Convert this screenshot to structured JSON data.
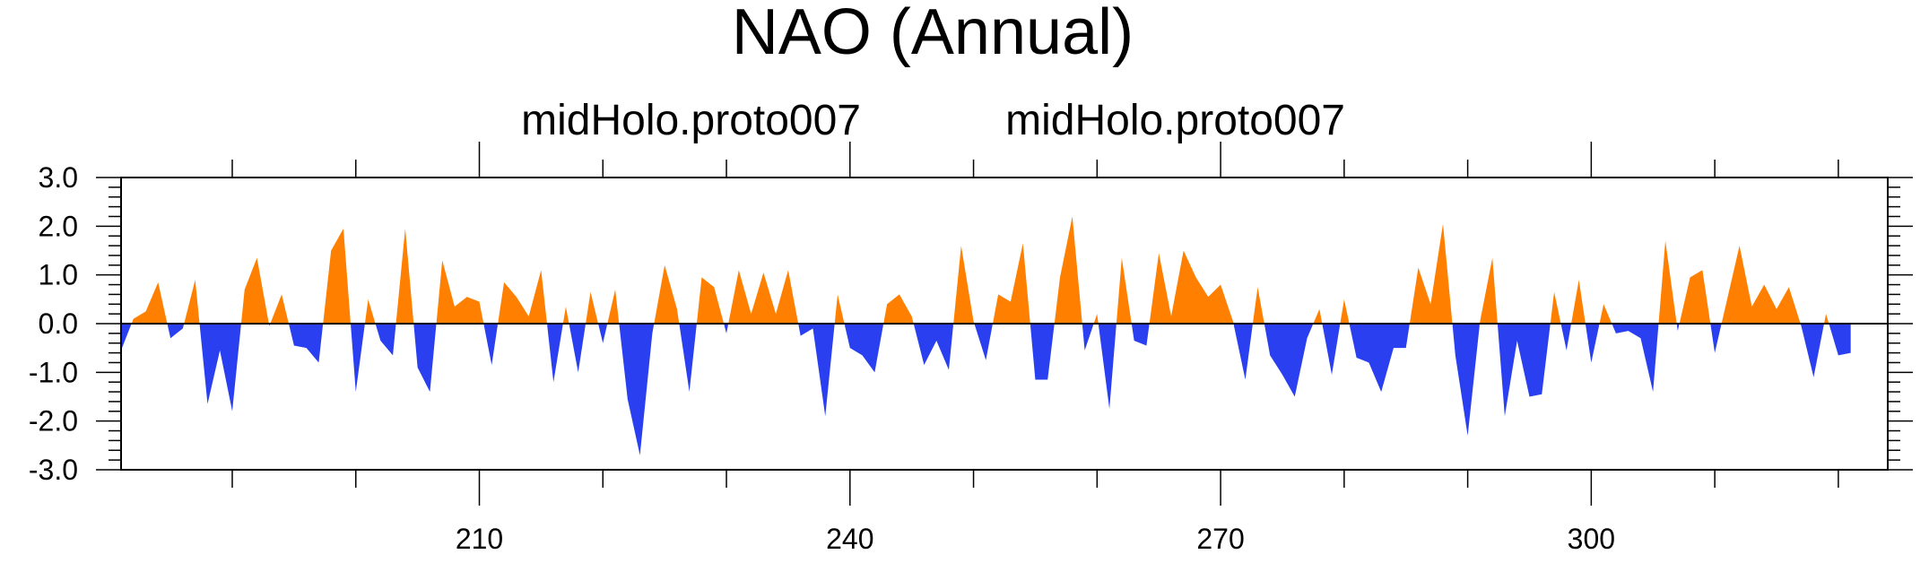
{
  "chart_data": {
    "type": "area",
    "title": "NAO (Annual)",
    "subtitle_left": "midHolo.proto007",
    "subtitle_right": "midHolo.proto007",
    "xlabel": "",
    "ylabel": "",
    "xlim": [
      181,
      324
    ],
    "ylim": [
      -3,
      3
    ],
    "x_ticks": [
      210,
      240,
      270,
      300
    ],
    "y_ticks": [
      3,
      2,
      1,
      0,
      -1,
      -2,
      -3
    ],
    "y_tick_labels": [
      "3.0",
      "2.0",
      "1.0",
      "0.0",
      "-1.0",
      "-2.0",
      "-3.0"
    ],
    "positive_color": "#ff8000",
    "negative_color": "#2a40f0",
    "x_start": 181,
    "values": [
      -0.55,
      0.1,
      0.25,
      0.85,
      -0.3,
      -0.1,
      0.9,
      -1.65,
      -0.55,
      -1.8,
      0.7,
      1.35,
      -0.05,
      0.6,
      -0.45,
      -0.5,
      -0.8,
      1.5,
      1.95,
      -1.4,
      0.5,
      -0.35,
      -0.65,
      1.95,
      -0.9,
      -1.4,
      1.3,
      0.35,
      0.55,
      0.45,
      -0.85,
      0.85,
      0.55,
      0.15,
      1.1,
      -1.2,
      0.35,
      -1.0,
      0.65,
      -0.4,
      0.7,
      -1.55,
      -2.7,
      -0.2,
      1.2,
      0.3,
      -1.4,
      0.95,
      0.75,
      -0.2,
      1.1,
      0.2,
      1.05,
      0.2,
      1.1,
      -0.25,
      -0.1,
      -1.9,
      0.6,
      -0.5,
      -0.65,
      -1.0,
      0.4,
      0.6,
      0.15,
      -0.85,
      -0.35,
      -0.95,
      1.6,
      0.05,
      -0.75,
      0.6,
      0.45,
      1.65,
      -1.15,
      -1.15,
      0.95,
      2.2,
      -0.55,
      0.2,
      -1.75,
      1.35,
      -0.35,
      -0.45,
      1.45,
      0.15,
      1.5,
      0.95,
      0.55,
      0.8,
      0.05,
      -1.15,
      0.75,
      -0.65,
      -1.05,
      -1.5,
      -0.3,
      0.3,
      -1.05,
      0.5,
      -0.7,
      -0.8,
      -1.4,
      -0.5,
      -0.5,
      1.15,
      0.4,
      2.05,
      -0.65,
      -2.3,
      0.05,
      1.35,
      -1.9,
      -0.35,
      -1.5,
      -1.45,
      0.65,
      -0.55,
      0.9,
      -0.8,
      0.4,
      -0.2,
      -0.15,
      -0.3,
      -1.4,
      1.7,
      -0.15,
      0.95,
      1.1,
      -0.6,
      0.5,
      1.6,
      0.35,
      0.8,
      0.3,
      0.75,
      -0.05,
      -1.1,
      0.2,
      -0.65,
      -0.6
    ]
  }
}
